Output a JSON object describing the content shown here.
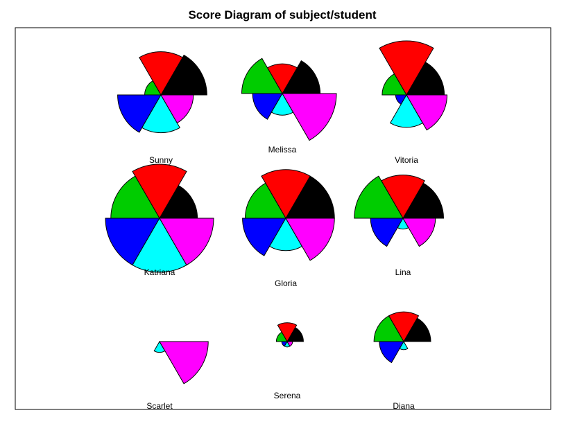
{
  "chart_data": {
    "type": "star-segment",
    "title": "Score Diagram of subject/student",
    "segment_colors": [
      "#000000",
      "#ff0000",
      "#00cc00",
      "#0000ff",
      "#00ffff",
      "#ff00ff"
    ],
    "students": [
      {
        "name": "Sunny",
        "values": [
          0.85,
          0.8,
          0.3,
          0.8,
          0.7,
          0.6
        ]
      },
      {
        "name": "Melissa",
        "values": [
          0.7,
          0.55,
          0.75,
          0.55,
          0.4,
          1.0
        ]
      },
      {
        "name": "Vitoria",
        "values": [
          0.7,
          1.0,
          0.45,
          0.2,
          0.6,
          0.75
        ]
      },
      {
        "name": "Katriana",
        "values": [
          0.7,
          1.0,
          0.9,
          1.0,
          1.0,
          1.0
        ]
      },
      {
        "name": "Gloria",
        "values": [
          0.9,
          0.9,
          0.75,
          0.8,
          0.6,
          0.9
        ]
      },
      {
        "name": "Lina",
        "values": [
          0.75,
          0.8,
          0.9,
          0.6,
          0.2,
          0.6
        ]
      },
      {
        "name": "Scarlet",
        "values": [
          0.0,
          0.0,
          0.0,
          0.0,
          0.2,
          0.9
        ]
      },
      {
        "name": "Serena",
        "values": [
          0.3,
          0.35,
          0.2,
          0.1,
          0.1,
          0.1
        ]
      },
      {
        "name": "Diana",
        "values": [
          0.5,
          0.55,
          0.55,
          0.45,
          0.15,
          0.0
        ]
      }
    ]
  }
}
